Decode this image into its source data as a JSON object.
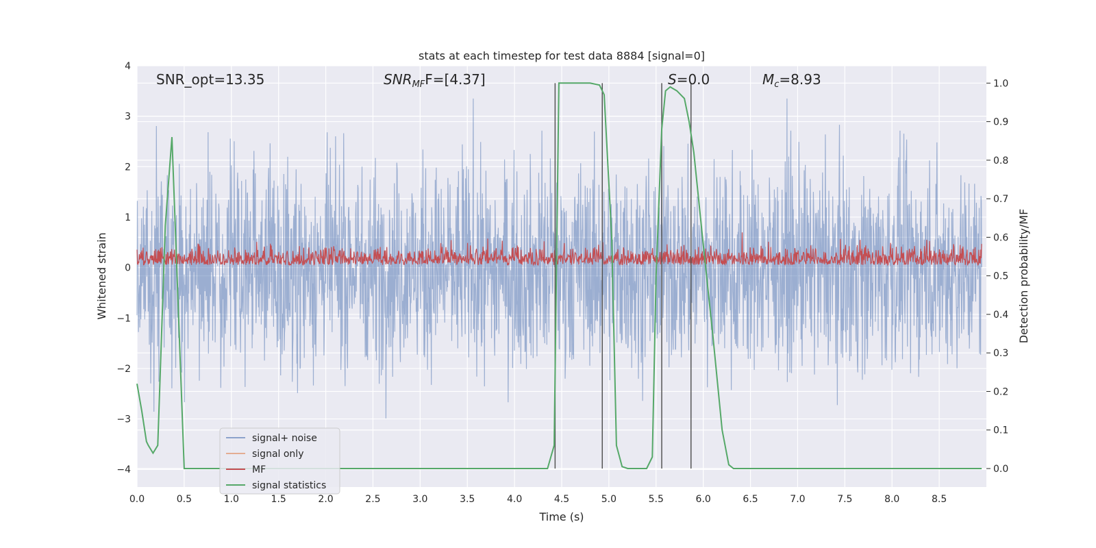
{
  "chart_data": {
    "type": "line",
    "title": "stats at each timestep for test data 8884 [signal=0]",
    "xlabel": "Time (s)",
    "ylabel": "Whitened strain",
    "y2label": "Detection probability/MF",
    "xlim": [
      0.0,
      9.0
    ],
    "ylim": [
      -4.35,
      4.0
    ],
    "y2lim": [
      -0.048,
      1.045
    ],
    "x_ticks": [
      "0.0",
      "0.5",
      "1.0",
      "1.5",
      "2.0",
      "2.5",
      "3.0",
      "3.5",
      "4.0",
      "4.5",
      "5.0",
      "5.5",
      "6.0",
      "6.5",
      "7.0",
      "7.5",
      "8.0",
      "8.5"
    ],
    "y_ticks": [
      "4",
      "3",
      "2",
      "1",
      "0",
      "−1",
      "−2",
      "−3",
      "−4"
    ],
    "y2_ticks": [
      "1.0",
      "0.9",
      "0.8",
      "0.7",
      "0.6",
      "0.5",
      "0.4",
      "0.3",
      "0.2",
      "0.1",
      "0.0"
    ],
    "grid": true,
    "legend_position": "lower-left",
    "colors": {
      "signal_noise": "#4c72b0",
      "signal_only": "#dd8452",
      "mf": "#c44e52",
      "statistics": "#55a868",
      "background": "#eaeaf2",
      "vlines": "#555555"
    },
    "series": [
      {
        "name": "signal+ noise",
        "description": "whitened noisy strain, roughly -2.5..2.5 with peaks near 3.3"
      },
      {
        "name": "signal only",
        "values": []
      },
      {
        "name": "MF",
        "description": "matched-filter output on right axis, ~0.52..0.62"
      },
      {
        "name": "signal statistics",
        "x": [
          0.0,
          0.05,
          0.1,
          0.12,
          0.17,
          0.22,
          0.3,
          0.37,
          0.44,
          0.5,
          1.0,
          2.0,
          3.0,
          4.0,
          4.35,
          4.42,
          4.47,
          4.55,
          4.8,
          4.9,
          4.95,
          5.03,
          5.08,
          5.14,
          5.2,
          5.3,
          5.4,
          5.46,
          5.5,
          5.56,
          5.6,
          5.65,
          5.72,
          5.8,
          5.85,
          5.9,
          5.95,
          6.0,
          6.1,
          6.2,
          6.27,
          6.32,
          6.36,
          6.45,
          7.0,
          8.0,
          8.95
        ],
        "y": [
          0.22,
          0.15,
          0.07,
          0.06,
          0.04,
          0.06,
          0.63,
          0.86,
          0.4,
          0.0,
          0.0,
          0.0,
          0.0,
          0.0,
          0.0,
          0.06,
          1.0,
          1.0,
          1.0,
          0.995,
          0.97,
          0.6,
          0.06,
          0.005,
          0.0,
          0.0,
          0.0,
          0.03,
          0.5,
          0.88,
          0.98,
          0.99,
          0.98,
          0.96,
          0.9,
          0.82,
          0.7,
          0.58,
          0.35,
          0.1,
          0.01,
          0.0,
          0.0,
          0.0,
          0.0,
          0.0,
          0.0
        ]
      }
    ],
    "vertical_lines_x": [
      4.43,
      4.93,
      5.56,
      5.87
    ],
    "annotations": {
      "snr_opt": "SNR_opt=13.35",
      "snr_mf_main": "SNR",
      "snr_mf_sub": "MF",
      "snr_mf_rest": "F=[4.37]",
      "s_main": "S",
      "s_rest": "=0.0",
      "mc_main": "M",
      "mc_sub": "c",
      "mc_rest": "=8.93"
    }
  }
}
